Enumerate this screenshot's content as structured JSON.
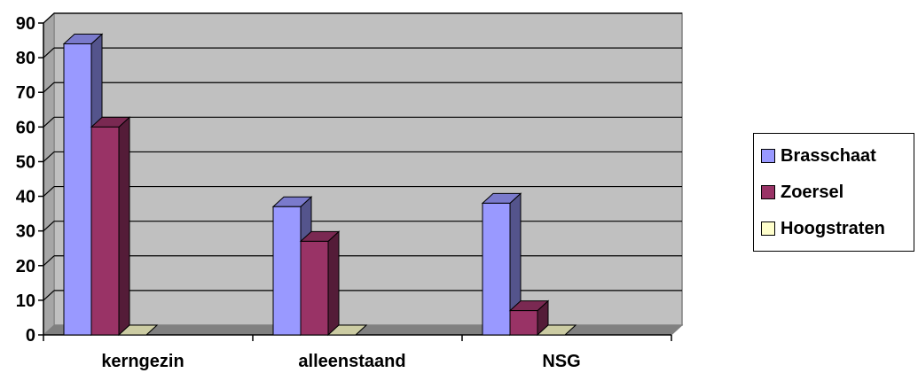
{
  "chart_data": {
    "type": "bar",
    "categories": [
      "kerngezin",
      "alleenstaand",
      "NSG"
    ],
    "series": [
      {
        "name": "Brasschaat",
        "values": [
          84,
          37,
          38
        ],
        "color": "#9999ff"
      },
      {
        "name": "Zoersel",
        "values": [
          60,
          27,
          7
        ],
        "color": "#993366"
      },
      {
        "name": "Hoogstraten",
        "values": [
          0,
          0,
          0
        ],
        "color": "#ffffcc"
      }
    ],
    "ylim": [
      0,
      90
    ],
    "yticks": [
      "0",
      "10",
      "20",
      "30",
      "40",
      "50",
      "60",
      "70",
      "80",
      "90"
    ],
    "grid": true,
    "legend_position": "right",
    "plot_background": "#c0c0c0"
  }
}
